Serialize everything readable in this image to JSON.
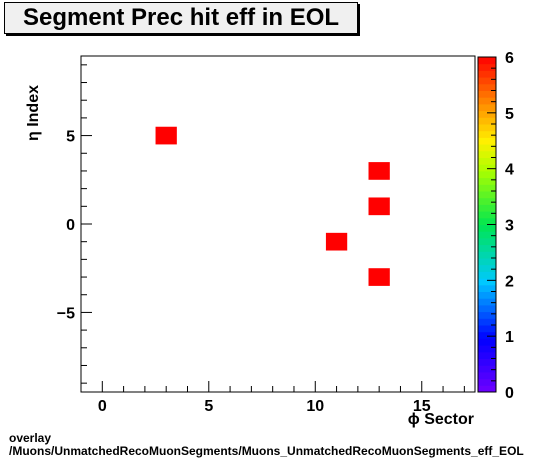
{
  "title": "Segment Prec hit eff in EOL",
  "footer": {
    "line1": "overlay",
    "line2": "/Muons/UnmatchedRecoMuonSegments/Muons_UnmatchedRecoMuonSegments_eff_EOL"
  },
  "chart_data": {
    "type": "heatmap",
    "xlabel": "ϕ Sector",
    "ylabel": "η Index",
    "xlim": [
      -1,
      17.5
    ],
    "ylim": [
      -9.5,
      9.5
    ],
    "x_ticks": [
      "0",
      "5",
      "10",
      "15"
    ],
    "y_ticks": [
      "−5",
      "0",
      "5"
    ],
    "z_range": [
      0,
      6
    ],
    "z_ticks": [
      "0",
      "1",
      "2",
      "3",
      "4",
      "5",
      "6"
    ],
    "cells": [
      {
        "x": 3,
        "y": 5,
        "z": 6
      },
      {
        "x": 13,
        "y": 3,
        "z": 6
      },
      {
        "x": 13,
        "y": 1,
        "z": 6
      },
      {
        "x": 11,
        "y": -1,
        "z": 6
      },
      {
        "x": 13,
        "y": -3,
        "z": 6
      }
    ],
    "grid": false,
    "colorbar": "right"
  }
}
